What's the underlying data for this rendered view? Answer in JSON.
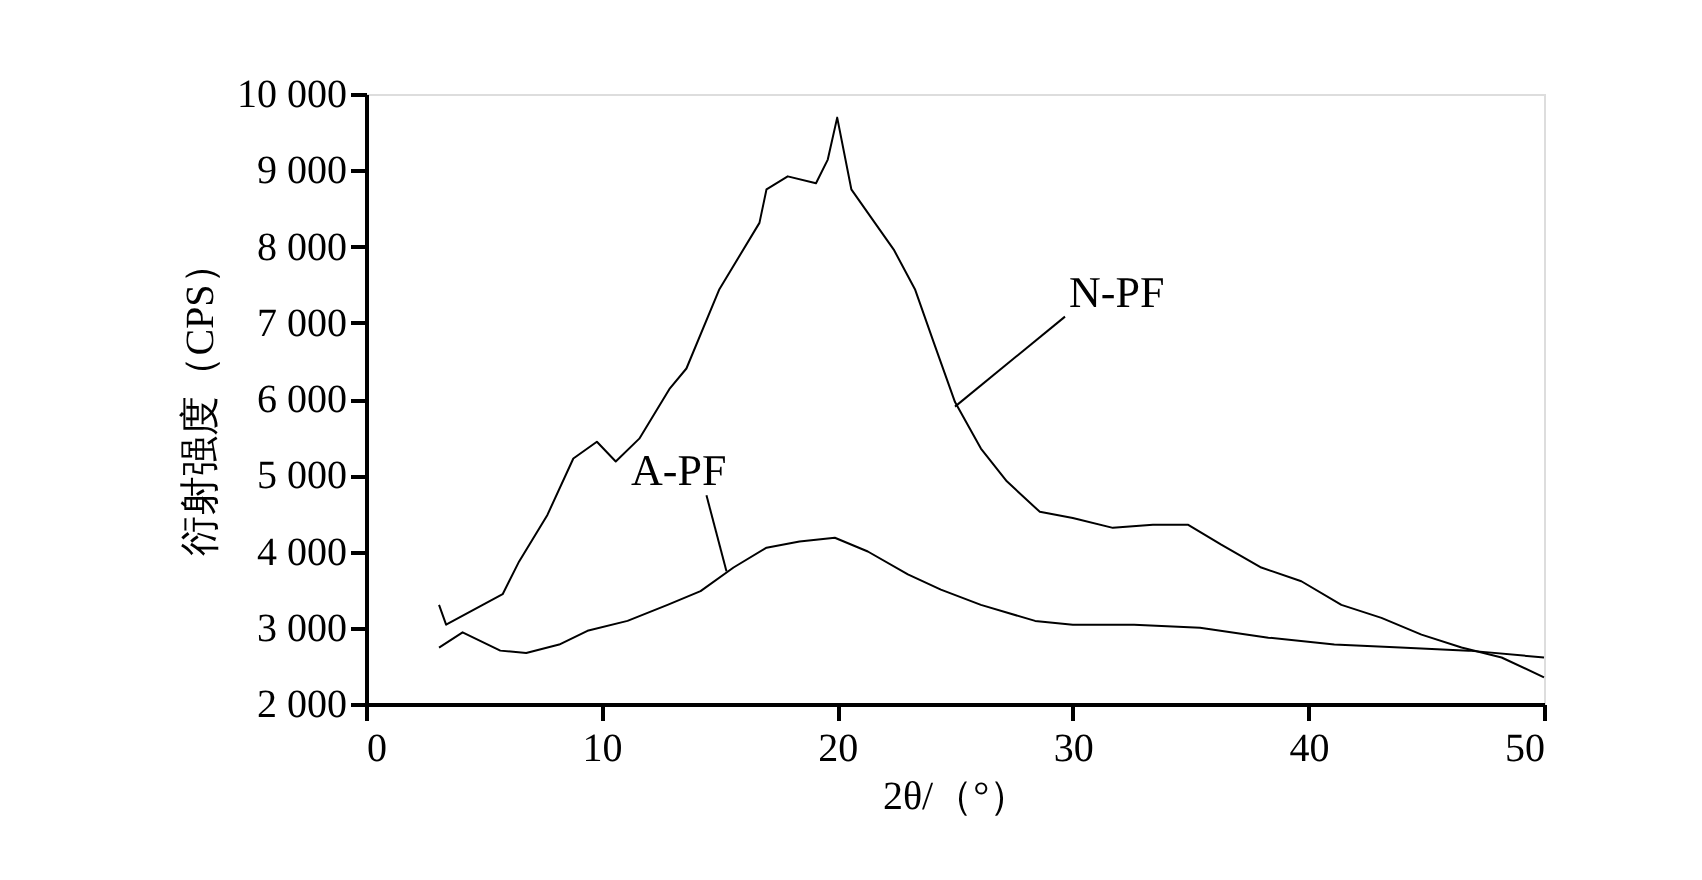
{
  "chart_data": {
    "type": "line",
    "xlabel": "2θ/（°）",
    "ylabel": "衍射强度（CPS）",
    "xlim": [
      0,
      50
    ],
    "xticks": [
      0,
      10,
      20,
      30,
      40,
      50
    ],
    "ylim": [
      2000,
      10000
    ],
    "yticks": [
      {
        "value": 2000,
        "label": "2 000"
      },
      {
        "value": 3000,
        "label": "3 000"
      },
      {
        "value": 4000,
        "label": "4 000"
      },
      {
        "value": 5000,
        "label": "5 000"
      },
      {
        "value": 6000,
        "label": "6 000"
      },
      {
        "value": 7000,
        "label": "7 000"
      },
      {
        "value": 8000,
        "label": "8 000"
      },
      {
        "value": 9000,
        "label": "9 000"
      },
      {
        "value": 10000,
        "label": "10 000"
      }
    ],
    "grid": false,
    "marker": "none",
    "line_style": "solid",
    "series": [
      {
        "color": "#000000",
        "x": [
          3.1,
          3.4,
          5.8,
          6.5,
          7.7,
          8.8,
          9.8,
          10.6,
          11.6,
          12.9,
          13.6,
          15.0,
          16.7,
          17.0,
          17.9,
          19.1,
          19.6,
          20.0,
          20.6,
          21.6,
          22.4,
          23.3,
          24.1,
          25.0,
          26.1,
          27.2,
          28.6,
          30.0,
          31.7,
          33.4,
          34.9,
          36.3,
          38.0,
          39.7,
          41.4,
          43.1,
          44.8,
          46.5,
          48.2,
          50.0
        ],
        "values": [
          3300,
          3040,
          3440,
          3870,
          4480,
          5220,
          5440,
          5180,
          5480,
          6140,
          6400,
          7440,
          8310,
          8750,
          8920,
          8830,
          9140,
          9690,
          8750,
          8310,
          7960,
          7440,
          6740,
          5960,
          5350,
          4920,
          4520,
          4440,
          4310,
          4350,
          4350,
          4090,
          3790,
          3610,
          3300,
          3130,
          2910,
          2740,
          2610,
          2350
        ]
      },
      {
        "color": "#000000",
        "x": [
          3.1,
          4.1,
          5.7,
          6.8,
          8.2,
          9.4,
          11.1,
          12.8,
          14.2,
          15.6,
          17.0,
          18.4,
          19.9,
          21.3,
          23.0,
          24.4,
          26.1,
          28.4,
          30.0,
          32.6,
          35.4,
          38.3,
          41.1,
          43.9,
          46.8,
          50.0
        ],
        "values": [
          2740,
          2940,
          2700,
          2670,
          2780,
          2960,
          3090,
          3300,
          3480,
          3790,
          4050,
          4130,
          4180,
          4000,
          3700,
          3500,
          3300,
          3090,
          3040,
          3040,
          3000,
          2870,
          2780,
          2740,
          2700,
          2610
        ]
      }
    ],
    "annotations": [
      {
        "text": "N-PF",
        "x": 25.0,
        "y": 5900
      },
      {
        "text": "A-PF",
        "x": 15.3,
        "y": 3740
      }
    ]
  }
}
